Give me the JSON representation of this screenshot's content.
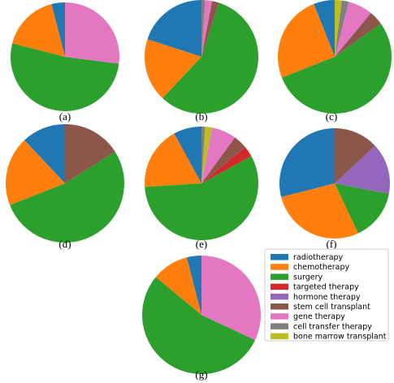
{
  "colors": {
    "radiotherapy": "#1f77b4",
    "chemotherapy": "#ff7f0e",
    "surgery": "#2ca02c",
    "targeted therapy": "#d62728",
    "hormone therapy": "#9467bd",
    "stem cell transplant": "#8c564b",
    "gene therapy": "#e377c2",
    "cell transfer therapy": "#7f7f7f",
    "bone marrow transplant": "#bcbd22"
  },
  "legend": {
    "entries": [
      "radiotherapy",
      "chemotherapy",
      "surgery",
      "targeted therapy",
      "hormone therapy",
      "stem cell transplant",
      "gene therapy",
      "cell transfer therapy",
      "bone marrow transplant"
    ]
  },
  "chart_data": [
    {
      "type": "pie",
      "label": "(a)",
      "slices": [
        {
          "category": "radiotherapy",
          "value": 4
        },
        {
          "category": "chemotherapy",
          "value": 17
        },
        {
          "category": "surgery",
          "value": 52
        },
        {
          "category": "gene therapy",
          "value": 27
        }
      ]
    },
    {
      "type": "pie",
      "label": "(b)",
      "slices": [
        {
          "category": "radiotherapy",
          "value": 20
        },
        {
          "category": "chemotherapy",
          "value": 18
        },
        {
          "category": "surgery",
          "value": 57
        },
        {
          "category": "stem cell transplant",
          "value": 2
        },
        {
          "category": "gene therapy",
          "value": 2
        },
        {
          "category": "cell transfer therapy",
          "value": 1
        }
      ]
    },
    {
      "type": "pie",
      "label": "(c)",
      "slices": [
        {
          "category": "radiotherapy",
          "value": 6
        },
        {
          "category": "chemotherapy",
          "value": 25
        },
        {
          "category": "surgery",
          "value": 54
        },
        {
          "category": "stem cell transplant",
          "value": 4
        },
        {
          "category": "gene therapy",
          "value": 7
        },
        {
          "category": "cell transfer therapy",
          "value": 2
        },
        {
          "category": "bone marrow transplant",
          "value": 2
        }
      ]
    },
    {
      "type": "pie",
      "label": "(d)",
      "slices": [
        {
          "category": "radiotherapy",
          "value": 12
        },
        {
          "category": "chemotherapy",
          "value": 19
        },
        {
          "category": "surgery",
          "value": 53
        },
        {
          "category": "stem cell transplant",
          "value": 16
        }
      ]
    },
    {
      "type": "pie",
      "label": "(e)",
      "slices": [
        {
          "category": "radiotherapy",
          "value": 8
        },
        {
          "category": "chemotherapy",
          "value": 18
        },
        {
          "category": "surgery",
          "value": 57
        },
        {
          "category": "targeted therapy",
          "value": 3
        },
        {
          "category": "stem cell transplant",
          "value": 4
        },
        {
          "category": "gene therapy",
          "value": 7
        },
        {
          "category": "bone marrow transplant",
          "value": 2
        },
        {
          "category": "cell transfer therapy",
          "value": 1
        }
      ]
    },
    {
      "type": "pie",
      "label": "(f)",
      "slices": [
        {
          "category": "radiotherapy",
          "value": 29
        },
        {
          "category": "chemotherapy",
          "value": 28
        },
        {
          "category": "surgery",
          "value": 15
        },
        {
          "category": "hormone therapy",
          "value": 15
        },
        {
          "category": "stem cell transplant",
          "value": 13
        }
      ]
    },
    {
      "type": "pie",
      "label": "(g)",
      "slices": [
        {
          "category": "radiotherapy",
          "value": 4
        },
        {
          "category": "chemotherapy",
          "value": 10
        },
        {
          "category": "surgery",
          "value": 54
        },
        {
          "category": "gene therapy",
          "value": 32
        }
      ]
    }
  ]
}
